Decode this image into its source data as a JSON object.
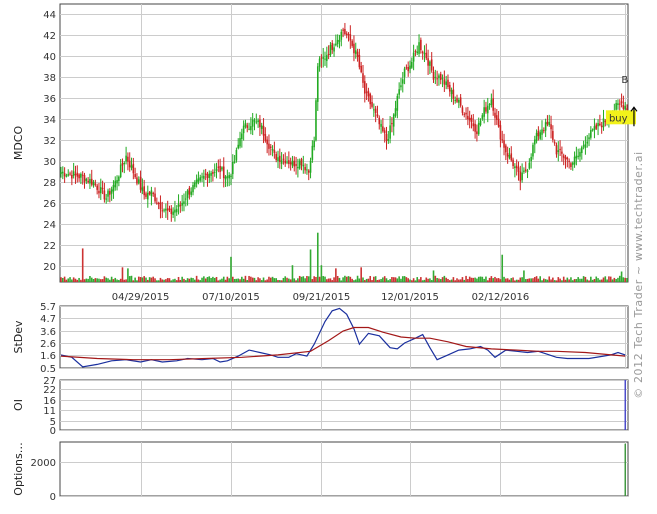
{
  "watermark": "© 2012 Tech Trader ~ www.techtrader.ai",
  "chart_data": [
    {
      "type": "candlestick",
      "ylabel": "MDCO",
      "ylim": [
        18.5,
        45
      ],
      "y_ticks": [
        20,
        22,
        24,
        26,
        28,
        30,
        32,
        34,
        36,
        38,
        40,
        42,
        44
      ],
      "x_tick_labels": [
        "04/29/2015",
        "07/10/2015",
        "09/21/2015",
        "12/01/2015",
        "02/12/2016"
      ],
      "x_tick_index": [
        44,
        94,
        144,
        193,
        243
      ],
      "grid": true,
      "up_color": "#22aa22",
      "down_color": "#cc2222",
      "close_path": [
        [
          0,
          29
        ],
        [
          12,
          28.5
        ],
        [
          18,
          28
        ],
        [
          25,
          26.5
        ],
        [
          30,
          28
        ],
        [
          36,
          30.5
        ],
        [
          40,
          29
        ],
        [
          46,
          26.8
        ],
        [
          50,
          27
        ],
        [
          55,
          25.8
        ],
        [
          60,
          25
        ],
        [
          66,
          25.8
        ],
        [
          70,
          27
        ],
        [
          76,
          28
        ],
        [
          82,
          29
        ],
        [
          88,
          29.2
        ],
        [
          92,
          28.5
        ],
        [
          94,
          29
        ],
        [
          96,
          30
        ],
        [
          100,
          33
        ],
        [
          106,
          33.8
        ],
        [
          110,
          33.5
        ],
        [
          114,
          32
        ],
        [
          118,
          30.5
        ],
        [
          124,
          30.2
        ],
        [
          128,
          29.8
        ],
        [
          133,
          30
        ],
        [
          137,
          29
        ],
        [
          138,
          30.5
        ],
        [
          140,
          32
        ],
        [
          142,
          39.2
        ],
        [
          146,
          40
        ],
        [
          152,
          41.5
        ],
        [
          156,
          42.5
        ],
        [
          160,
          41.5
        ],
        [
          164,
          39.8
        ],
        [
          168,
          36.5
        ],
        [
          172,
          35.2
        ],
        [
          176,
          33.5
        ],
        [
          180,
          32
        ],
        [
          183,
          33.5
        ],
        [
          186,
          36
        ],
        [
          190,
          38.5
        ],
        [
          194,
          39.5
        ],
        [
          198,
          41.2
        ],
        [
          202,
          40
        ],
        [
          206,
          38.2
        ],
        [
          210,
          38
        ],
        [
          214,
          37
        ],
        [
          218,
          36
        ],
        [
          222,
          35
        ],
        [
          226,
          34
        ],
        [
          230,
          33
        ],
        [
          234,
          34.8
        ],
        [
          238,
          36
        ],
        [
          242,
          33
        ],
        [
          246,
          31
        ],
        [
          250,
          29.8
        ],
        [
          254,
          28.2
        ],
        [
          258,
          29.5
        ],
        [
          262,
          32
        ],
        [
          266,
          33.2
        ],
        [
          270,
          33.5
        ],
        [
          274,
          31
        ],
        [
          278,
          30.5
        ],
        [
          282,
          29.8
        ],
        [
          286,
          30.5
        ],
        [
          290,
          32
        ],
        [
          294,
          32.8
        ],
        [
          298,
          33.5
        ],
        [
          302,
          34
        ],
        [
          306,
          35
        ],
        [
          310,
          35.5
        ],
        [
          313,
          35.2
        ]
      ],
      "volume_spikes": [
        {
          "i": 12,
          "v": 3.2,
          "dir": "down"
        },
        {
          "i": 34,
          "v": 1.4,
          "dir": "down"
        },
        {
          "i": 37,
          "v": 1.3,
          "dir": "up"
        },
        {
          "i": 94,
          "v": 2.4,
          "dir": "up"
        },
        {
          "i": 128,
          "v": 1.6,
          "dir": "up"
        },
        {
          "i": 138,
          "v": 3.1,
          "dir": "up"
        },
        {
          "i": 142,
          "v": 4.7,
          "dir": "up"
        },
        {
          "i": 144,
          "v": 1.6,
          "dir": "up"
        },
        {
          "i": 152,
          "v": 1.3,
          "dir": "down"
        },
        {
          "i": 166,
          "v": 1.4,
          "dir": "down"
        },
        {
          "i": 206,
          "v": 1.1,
          "dir": "up"
        },
        {
          "i": 244,
          "v": 2.6,
          "dir": "up"
        },
        {
          "i": 256,
          "v": 1.1,
          "dir": "up"
        },
        {
          "i": 310,
          "v": 1.0,
          "dir": "up"
        }
      ],
      "annotations": [
        {
          "text": "buy",
          "index": 308,
          "price": 34.2
        },
        {
          "text": "B",
          "index": 311,
          "price": 37.1
        }
      ]
    },
    {
      "type": "line",
      "ylabel": "StDev",
      "ylim": [
        0.5,
        5.7
      ],
      "y_ticks": [
        0.5,
        1.6,
        2.6,
        3.6,
        4.7,
        5.7
      ],
      "series": [
        {
          "color": "#1a2f9e",
          "points": [
            [
              0,
              1.6
            ],
            [
              6,
              1.4
            ],
            [
              12,
              0.6
            ],
            [
              20,
              0.8
            ],
            [
              28,
              1.1
            ],
            [
              36,
              1.2
            ],
            [
              44,
              1.0
            ],
            [
              50,
              1.2
            ],
            [
              56,
              1.0
            ],
            [
              64,
              1.1
            ],
            [
              70,
              1.3
            ],
            [
              78,
              1.2
            ],
            [
              84,
              1.3
            ],
            [
              88,
              1.0
            ],
            [
              92,
              1.1
            ],
            [
              98,
              1.5
            ],
            [
              104,
              2.0
            ],
            [
              110,
              1.8
            ],
            [
              116,
              1.6
            ],
            [
              120,
              1.4
            ],
            [
              126,
              1.4
            ],
            [
              130,
              1.7
            ],
            [
              136,
              1.5
            ],
            [
              140,
              2.5
            ],
            [
              146,
              4.4
            ],
            [
              150,
              5.3
            ],
            [
              154,
              5.5
            ],
            [
              158,
              5.0
            ],
            [
              162,
              3.8
            ],
            [
              165,
              2.5
            ],
            [
              170,
              3.4
            ],
            [
              176,
              3.2
            ],
            [
              182,
              2.2
            ],
            [
              186,
              2.1
            ],
            [
              190,
              2.6
            ],
            [
              196,
              3.0
            ],
            [
              200,
              3.3
            ],
            [
              204,
              2.2
            ],
            [
              208,
              1.2
            ],
            [
              214,
              1.6
            ],
            [
              220,
              2.0
            ],
            [
              226,
              2.1
            ],
            [
              232,
              2.3
            ],
            [
              236,
              2.0
            ],
            [
              240,
              1.4
            ],
            [
              246,
              2.0
            ],
            [
              252,
              1.9
            ],
            [
              258,
              1.8
            ],
            [
              264,
              1.9
            ],
            [
              268,
              1.7
            ],
            [
              274,
              1.4
            ],
            [
              280,
              1.3
            ],
            [
              286,
              1.3
            ],
            [
              292,
              1.3
            ],
            [
              300,
              1.5
            ],
            [
              304,
              1.6
            ],
            [
              308,
              1.8
            ],
            [
              312,
              1.6
            ]
          ]
        },
        {
          "color": "#a31818",
          "points": [
            [
              0,
              1.5
            ],
            [
              20,
              1.3
            ],
            [
              40,
              1.2
            ],
            [
              60,
              1.2
            ],
            [
              80,
              1.3
            ],
            [
              100,
              1.4
            ],
            [
              120,
              1.6
            ],
            [
              138,
              1.9
            ],
            [
              148,
              2.8
            ],
            [
              156,
              3.6
            ],
            [
              162,
              3.9
            ],
            [
              170,
              3.9
            ],
            [
              178,
              3.5
            ],
            [
              188,
              3.1
            ],
            [
              196,
              3.0
            ],
            [
              204,
              3.0
            ],
            [
              214,
              2.7
            ],
            [
              224,
              2.3
            ],
            [
              238,
              2.1
            ],
            [
              252,
              2.0
            ],
            [
              264,
              1.9
            ],
            [
              274,
              1.9
            ],
            [
              290,
              1.8
            ],
            [
              312,
              1.5
            ]
          ]
        }
      ]
    },
    {
      "type": "bar",
      "ylabel": "OI",
      "ylim": [
        0,
        27
      ],
      "y_ticks": [
        0,
        5,
        11,
        16,
        22,
        27
      ],
      "bar_color": "#2a2ac8",
      "bars": [
        {
          "i": 312,
          "v": 27
        }
      ]
    },
    {
      "type": "bar",
      "ylabel": "Options…",
      "ylim": [
        0,
        3200
      ],
      "y_ticks": [
        0,
        2000
      ],
      "bar_color": "#1e8a1e",
      "bars": [
        {
          "i": 312,
          "v": 3100
        }
      ]
    }
  ]
}
